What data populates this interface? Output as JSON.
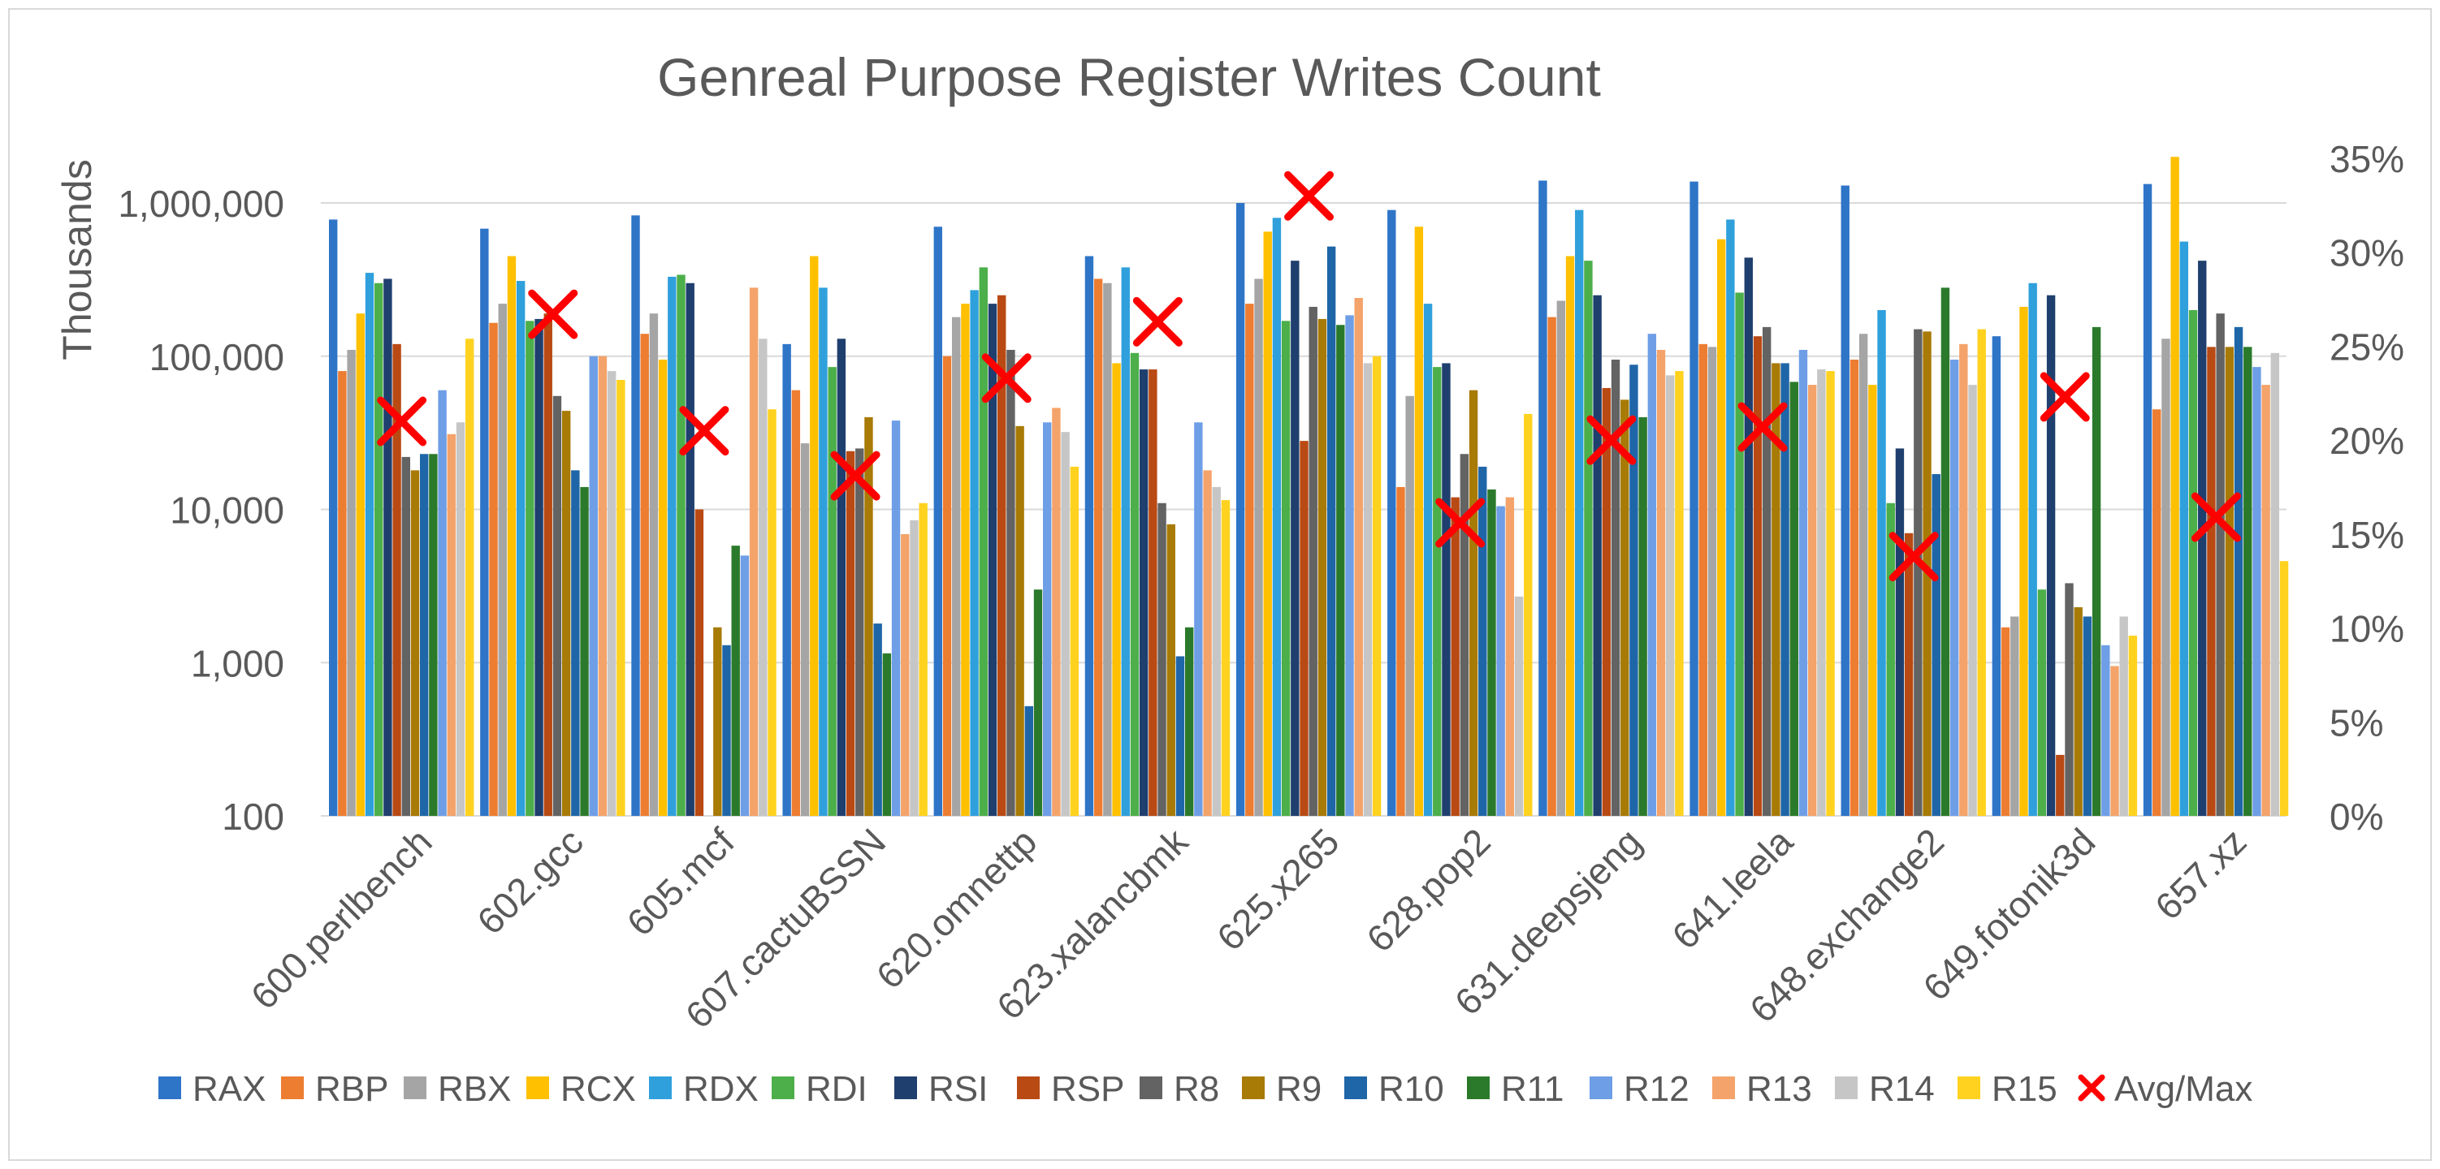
{
  "chart_data": {
    "type": "bar",
    "title": "Genreal Purpose Register Writes Count",
    "ylabel": "Thousands",
    "y_scale": "log",
    "ylim": [
      100,
      3000000
    ],
    "y_ticks": [
      "100",
      "1,000",
      "10,000",
      "100,000",
      "1,000,000"
    ],
    "y2_scale": "linear",
    "y2lim": [
      0,
      0.35
    ],
    "y2_ticks": [
      "0%",
      "5%",
      "10%",
      "15%",
      "20%",
      "25%",
      "30%",
      "35%"
    ],
    "grid": true,
    "legend_position": "bottom",
    "categories": [
      "600.perlbench",
      "602.gcc",
      "605.mcf",
      "607.cactuBSSN",
      "620.omnettp",
      "623.xalancbmk",
      "625.x265",
      "628.pop2",
      "631.deepsjeng",
      "641.leela",
      "648.exchange2",
      "649.fotonik3d",
      "657.xz"
    ],
    "series": [
      {
        "name": "RAX",
        "color": "#2e75c8",
        "values": [
          780000,
          680000,
          830000,
          120000,
          700000,
          450000,
          1000000,
          900000,
          1400000,
          1380000,
          1300000,
          135000,
          1330000
        ]
      },
      {
        "name": "RBP",
        "color": "#ed7d31",
        "values": [
          80000,
          165000,
          140000,
          60000,
          100000,
          320000,
          220000,
          14000,
          180000,
          120000,
          95000,
          1700,
          45000
        ]
      },
      {
        "name": "RBX",
        "color": "#a5a5a5",
        "values": [
          110000,
          220000,
          190000,
          27000,
          180000,
          300000,
          320000,
          55000,
          230000,
          115000,
          140000,
          2000,
          130000
        ]
      },
      {
        "name": "RCX",
        "color": "#ffc000",
        "values": [
          190000,
          450000,
          95000,
          450000,
          220000,
          90000,
          650000,
          700000,
          450000,
          580000,
          65000,
          210000,
          2000000
        ]
      },
      {
        "name": "RDX",
        "color": "#2fa0dc",
        "values": [
          350000,
          310000,
          330000,
          280000,
          270000,
          380000,
          800000,
          220000,
          900000,
          780000,
          200000,
          300000,
          560000
        ]
      },
      {
        "name": "RDI",
        "color": "#4caf4a",
        "values": [
          300000,
          170000,
          340000,
          85000,
          380000,
          105000,
          170000,
          85000,
          420000,
          260000,
          11000,
          3000,
          200000
        ]
      },
      {
        "name": "RSI",
        "color": "#1f3f6e",
        "values": [
          320000,
          175000,
          300000,
          130000,
          220000,
          82000,
          420000,
          90000,
          250000,
          440000,
          25000,
          250000,
          420000
        ]
      },
      {
        "name": "RSP",
        "color": "#b94a14",
        "values": [
          120000,
          190000,
          10000,
          24000,
          250000,
          82000,
          28000,
          12000,
          62000,
          135000,
          7000,
          250,
          115000
        ]
      },
      {
        "name": "R8",
        "color": "#636363",
        "values": [
          22000,
          55000,
          100,
          25000,
          110000,
          11000,
          210000,
          23000,
          95000,
          155000,
          150000,
          3300,
          190000
        ]
      },
      {
        "name": "R9",
        "color": "#a87a06",
        "values": [
          18000,
          44000,
          1700,
          40000,
          35000,
          8000,
          175000,
          60000,
          52000,
          90000,
          145000,
          2300,
          115000
        ]
      },
      {
        "name": "R10",
        "color": "#1e66a8",
        "values": [
          23000,
          18000,
          1300,
          1800,
          520,
          1100,
          520000,
          19000,
          88000,
          90000,
          17000,
          2000,
          155000
        ]
      },
      {
        "name": "R11",
        "color": "#2b7a2b",
        "values": [
          23000,
          14000,
          5800,
          1150,
          3000,
          1700,
          160000,
          13500,
          40000,
          68000,
          280000,
          155000,
          115000
        ]
      },
      {
        "name": "R12",
        "color": "#6e9ee6",
        "values": [
          60000,
          100000,
          5000,
          38000,
          37000,
          37000,
          185000,
          10500,
          140000,
          110000,
          95000,
          1300,
          85000
        ]
      },
      {
        "name": "R13",
        "color": "#f4a36a",
        "values": [
          31000,
          100000,
          280000,
          6900,
          46000,
          18000,
          240000,
          12000,
          110000,
          65000,
          120000,
          950,
          65000
        ]
      },
      {
        "name": "R14",
        "color": "#c6c6c6",
        "values": [
          37000,
          80000,
          130000,
          8500,
          32000,
          14000,
          90000,
          2700,
          75000,
          82000,
          65000,
          2000,
          105000
        ]
      },
      {
        "name": "R15",
        "color": "#ffd21f",
        "values": [
          130000,
          70000,
          45000,
          11000,
          19000,
          11500,
          100000,
          42000,
          80000,
          80000,
          150000,
          1500,
          4600
        ]
      }
    ],
    "avg_max": {
      "name": "Avg/Max",
      "color": "#ff0000",
      "axis": "secondary",
      "values": [
        0.21,
        0.267,
        0.205,
        0.181,
        0.233,
        0.263,
        0.33,
        0.156,
        0.2,
        0.207,
        0.138,
        0.223,
        0.159
      ]
    }
  }
}
